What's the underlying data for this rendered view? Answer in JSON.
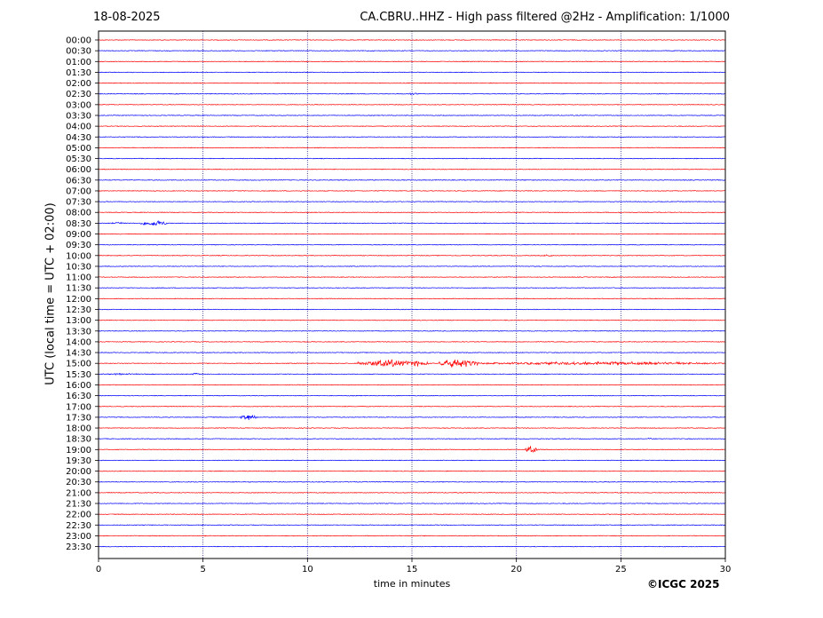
{
  "header": {
    "date": "18-08-2025",
    "title": "CA.CBRU..HHZ - High pass filtered @2Hz - Amplification: 1/1000"
  },
  "copyright": "©ICGC 2025",
  "chart_data": {
    "type": "line",
    "title": "CA.CBRU..HHZ - High pass filtered @2Hz - Amplification: 1/1000",
    "xlabel": "time in minutes",
    "ylabel": "UTC (local time = UTC + 02:00)",
    "xlim": [
      0,
      30
    ],
    "x_ticks": [
      0,
      5,
      10,
      15,
      20,
      25,
      30
    ],
    "x_gridlines": [
      5,
      10,
      15,
      20,
      25
    ],
    "grid": "vertical dotted lines",
    "row_labels": [
      "00:00",
      "00:30",
      "01:00",
      "01:30",
      "02:00",
      "02:30",
      "03:00",
      "03:30",
      "04:00",
      "04:30",
      "05:00",
      "05:30",
      "06:00",
      "06:30",
      "07:00",
      "07:30",
      "08:00",
      "08:30",
      "09:00",
      "09:30",
      "10:00",
      "10:30",
      "11:00",
      "11:30",
      "12:00",
      "12:30",
      "13:00",
      "13:30",
      "14:00",
      "14:30",
      "15:00",
      "15:30",
      "16:00",
      "16:30",
      "17:00",
      "17:30",
      "18:00",
      "18:30",
      "19:00",
      "19:30",
      "20:00",
      "20:30",
      "21:00",
      "21:30",
      "22:00",
      "22:30",
      "23:00",
      "23:30"
    ],
    "trace_colors": [
      "#ff0000",
      "#0000ff"
    ],
    "events": [
      {
        "row": "02:30",
        "start": 14.7,
        "end": 15.4,
        "amp": 1.5
      },
      {
        "row": "08:30",
        "start": 0.6,
        "end": 1.2,
        "amp": 1.5
      },
      {
        "row": "08:30",
        "start": 2.0,
        "end": 3.3,
        "amp": 4
      },
      {
        "row": "10:00",
        "start": 21.3,
        "end": 21.7,
        "amp": 2
      },
      {
        "row": "15:00",
        "start": 12.4,
        "end": 15.8,
        "amp": 5
      },
      {
        "row": "15:00",
        "start": 16.3,
        "end": 18.2,
        "amp": 6
      },
      {
        "row": "15:00",
        "start": 18.2,
        "end": 30.0,
        "amp": 2
      },
      {
        "row": "15:30",
        "start": 0.0,
        "end": 2.0,
        "amp": 1
      },
      {
        "row": "15:30",
        "start": 4.5,
        "end": 4.9,
        "amp": 1.5
      },
      {
        "row": "17:30",
        "start": 6.8,
        "end": 7.6,
        "amp": 3.5
      },
      {
        "row": "18:30",
        "start": 26.2,
        "end": 26.5,
        "amp": 1.5
      },
      {
        "row": "19:00",
        "start": 20.4,
        "end": 21.0,
        "amp": 5
      }
    ]
  }
}
